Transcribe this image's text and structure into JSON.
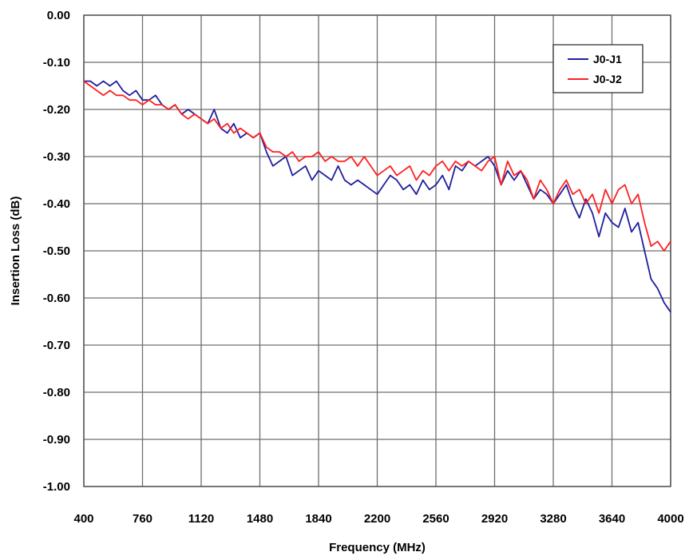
{
  "chart_data": {
    "type": "line",
    "title": "",
    "xlabel": "Frequency (MHz)",
    "ylabel": "Insertion Loss (dB)",
    "xlim": [
      400,
      4000
    ],
    "ylim": [
      -1.0,
      0.0
    ],
    "x_ticks": [
      "400",
      "760",
      "1120",
      "1480",
      "1840",
      "2200",
      "2560",
      "2920",
      "3280",
      "3640",
      "4000"
    ],
    "y_ticks": [
      "0.00",
      "-0.10",
      "-0.20",
      "-0.30",
      "-0.40",
      "-0.50",
      "-0.60",
      "-0.70",
      "-0.80",
      "-0.90",
      "-1.00"
    ],
    "grid": true,
    "legend_position": "top-right",
    "series": [
      {
        "name": "J0-J1",
        "color": "#1f1f9e",
        "x": [
          400,
          440,
          480,
          520,
          560,
          600,
          640,
          680,
          720,
          760,
          800,
          840,
          880,
          920,
          960,
          1000,
          1040,
          1080,
          1120,
          1160,
          1200,
          1240,
          1280,
          1320,
          1360,
          1400,
          1440,
          1480,
          1520,
          1560,
          1600,
          1640,
          1680,
          1720,
          1760,
          1800,
          1840,
          1880,
          1920,
          1960,
          2000,
          2040,
          2080,
          2120,
          2160,
          2200,
          2240,
          2280,
          2320,
          2360,
          2400,
          2440,
          2480,
          2520,
          2560,
          2600,
          2640,
          2680,
          2720,
          2760,
          2800,
          2840,
          2880,
          2920,
          2960,
          3000,
          3040,
          3080,
          3120,
          3160,
          3200,
          3240,
          3280,
          3320,
          3360,
          3400,
          3440,
          3480,
          3520,
          3560,
          3600,
          3640,
          3680,
          3720,
          3760,
          3800,
          3840,
          3880,
          3920,
          3960,
          4000
        ],
        "values": [
          -0.14,
          -0.14,
          -0.15,
          -0.14,
          -0.15,
          -0.14,
          -0.16,
          -0.17,
          -0.16,
          -0.18,
          -0.18,
          -0.17,
          -0.19,
          -0.2,
          -0.19,
          -0.21,
          -0.2,
          -0.21,
          -0.22,
          -0.23,
          -0.2,
          -0.24,
          -0.25,
          -0.23,
          -0.26,
          -0.25,
          -0.26,
          -0.25,
          -0.29,
          -0.32,
          -0.31,
          -0.3,
          -0.34,
          -0.33,
          -0.32,
          -0.35,
          -0.33,
          -0.34,
          -0.35,
          -0.32,
          -0.35,
          -0.36,
          -0.35,
          -0.36,
          -0.37,
          -0.38,
          -0.36,
          -0.34,
          -0.35,
          -0.37,
          -0.36,
          -0.38,
          -0.35,
          -0.37,
          -0.36,
          -0.34,
          -0.37,
          -0.32,
          -0.33,
          -0.31,
          -0.32,
          -0.31,
          -0.3,
          -0.32,
          -0.36,
          -0.33,
          -0.35,
          -0.33,
          -0.36,
          -0.39,
          -0.37,
          -0.38,
          -0.4,
          -0.38,
          -0.36,
          -0.4,
          -0.43,
          -0.39,
          -0.42,
          -0.47,
          -0.42,
          -0.44,
          -0.45,
          -0.41,
          -0.46,
          -0.44,
          -0.5,
          -0.56,
          -0.58,
          -0.61,
          -0.63
        ]
      },
      {
        "name": "J0-J2",
        "color": "#ff2020",
        "x": [
          400,
          440,
          480,
          520,
          560,
          600,
          640,
          680,
          720,
          760,
          800,
          840,
          880,
          920,
          960,
          1000,
          1040,
          1080,
          1120,
          1160,
          1200,
          1240,
          1280,
          1320,
          1360,
          1400,
          1440,
          1480,
          1520,
          1560,
          1600,
          1640,
          1680,
          1720,
          1760,
          1800,
          1840,
          1880,
          1920,
          1960,
          2000,
          2040,
          2080,
          2120,
          2160,
          2200,
          2240,
          2280,
          2320,
          2360,
          2400,
          2440,
          2480,
          2520,
          2560,
          2600,
          2640,
          2680,
          2720,
          2760,
          2800,
          2840,
          2880,
          2920,
          2960,
          3000,
          3040,
          3080,
          3120,
          3160,
          3200,
          3240,
          3280,
          3320,
          3360,
          3400,
          3440,
          3480,
          3520,
          3560,
          3600,
          3640,
          3680,
          3720,
          3760,
          3800,
          3840,
          3880,
          3920,
          3960,
          4000
        ],
        "values": [
          -0.14,
          -0.15,
          -0.16,
          -0.17,
          -0.16,
          -0.17,
          -0.17,
          -0.18,
          -0.18,
          -0.19,
          -0.18,
          -0.19,
          -0.19,
          -0.2,
          -0.19,
          -0.21,
          -0.22,
          -0.21,
          -0.22,
          -0.23,
          -0.22,
          -0.24,
          -0.23,
          -0.25,
          -0.24,
          -0.25,
          -0.26,
          -0.25,
          -0.28,
          -0.29,
          -0.29,
          -0.3,
          -0.29,
          -0.31,
          -0.3,
          -0.3,
          -0.29,
          -0.31,
          -0.3,
          -0.31,
          -0.31,
          -0.3,
          -0.32,
          -0.3,
          -0.32,
          -0.34,
          -0.33,
          -0.32,
          -0.34,
          -0.33,
          -0.32,
          -0.35,
          -0.33,
          -0.34,
          -0.32,
          -0.31,
          -0.33,
          -0.31,
          -0.32,
          -0.31,
          -0.32,
          -0.33,
          -0.31,
          -0.3,
          -0.36,
          -0.31,
          -0.34,
          -0.33,
          -0.35,
          -0.39,
          -0.35,
          -0.37,
          -0.4,
          -0.37,
          -0.35,
          -0.38,
          -0.37,
          -0.4,
          -0.38,
          -0.42,
          -0.37,
          -0.4,
          -0.37,
          -0.36,
          -0.4,
          -0.38,
          -0.44,
          -0.49,
          -0.48,
          -0.5,
          -0.48
        ]
      }
    ]
  }
}
